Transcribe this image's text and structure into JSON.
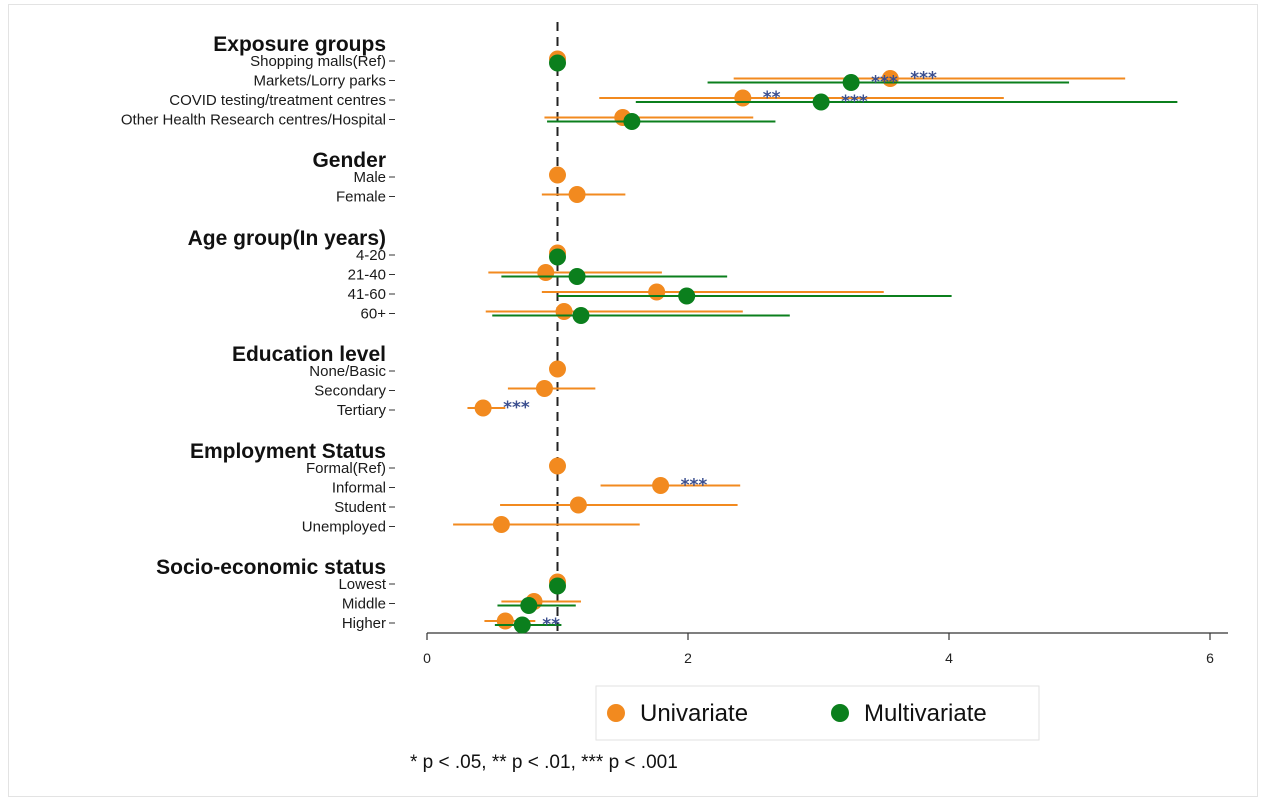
{
  "chart_data": {
    "type": "scatter",
    "subtype": "forest-plot",
    "x_ticks": [
      0,
      2,
      4,
      6
    ],
    "xlim": [
      0,
      6.1
    ],
    "reference_line": 1,
    "colors": {
      "Univariate": "#f28a1f",
      "Multivariate": "#0b7f1d",
      "star": "#3b4f8f"
    },
    "groups": [
      {
        "header": "Exposure groups",
        "rows": [
          {
            "label": "Shopping malls(Ref)",
            "uni": {
              "est": 1
            },
            "multi": {
              "est": 1
            }
          },
          {
            "label": "Markets/Lorry parks",
            "uni": {
              "est": 3.55,
              "lo": 2.35,
              "hi": 5.35,
              "sig": "***"
            },
            "multi": {
              "est": 3.25,
              "lo": 2.15,
              "hi": 4.92,
              "sig": "***"
            }
          },
          {
            "label": "COVID testing/treatment centres",
            "uni": {
              "est": 2.42,
              "lo": 1.32,
              "hi": 4.42,
              "sig": "**"
            },
            "multi": {
              "est": 3.02,
              "lo": 1.6,
              "hi": 5.75,
              "sig": "***"
            }
          },
          {
            "label": "Other Health Research centres/Hospital",
            "uni": {
              "est": 1.5,
              "lo": 0.9,
              "hi": 2.5
            },
            "multi": {
              "est": 1.57,
              "lo": 0.92,
              "hi": 2.67
            }
          }
        ]
      },
      {
        "header": "Gender",
        "rows": [
          {
            "label": "Male",
            "uni": {
              "est": 1
            }
          },
          {
            "label": "Female",
            "uni": {
              "est": 1.15,
              "lo": 0.88,
              "hi": 1.52
            }
          }
        ]
      },
      {
        "header": "Age group(In years)",
        "rows": [
          {
            "label": "4-20",
            "uni": {
              "est": 1
            },
            "multi": {
              "est": 1
            }
          },
          {
            "label": "21-40",
            "uni": {
              "est": 0.91,
              "lo": 0.47,
              "hi": 1.8
            },
            "multi": {
              "est": 1.15,
              "lo": 0.57,
              "hi": 2.3
            }
          },
          {
            "label": "41-60",
            "uni": {
              "est": 1.76,
              "lo": 0.88,
              "hi": 3.5
            },
            "multi": {
              "est": 1.99,
              "lo": 1.0,
              "hi": 4.02
            }
          },
          {
            "label": "60+",
            "uni": {
              "est": 1.05,
              "lo": 0.45,
              "hi": 2.42
            },
            "multi": {
              "est": 1.18,
              "lo": 0.5,
              "hi": 2.78
            }
          }
        ]
      },
      {
        "header": "Education level",
        "rows": [
          {
            "label": "None/Basic",
            "uni": {
              "est": 1
            }
          },
          {
            "label": "Secondary",
            "uni": {
              "est": 0.9,
              "lo": 0.62,
              "hi": 1.29
            }
          },
          {
            "label": "Tertiary",
            "uni": {
              "est": 0.43,
              "lo": 0.31,
              "hi": 0.6,
              "sig": "***"
            }
          }
        ]
      },
      {
        "header": "Employment Status",
        "rows": [
          {
            "label": "Formal(Ref)",
            "uni": {
              "est": 1
            }
          },
          {
            "label": "Informal",
            "uni": {
              "est": 1.79,
              "lo": 1.33,
              "hi": 2.4,
              "sig": "***"
            }
          },
          {
            "label": "Student",
            "uni": {
              "est": 1.16,
              "lo": 0.56,
              "hi": 2.38
            }
          },
          {
            "label": "Unemployed",
            "uni": {
              "est": 0.57,
              "lo": 0.2,
              "hi": 1.63
            }
          }
        ]
      },
      {
        "header": "Socio-economic status",
        "rows": [
          {
            "label": "Lowest",
            "uni": {
              "est": 1
            },
            "multi": {
              "est": 1
            }
          },
          {
            "label": "Middle",
            "uni": {
              "est": 0.82,
              "lo": 0.57,
              "hi": 1.18
            },
            "multi": {
              "est": 0.78,
              "lo": 0.54,
              "hi": 1.14
            }
          },
          {
            "label": "Higher",
            "uni": {
              "est": 0.6,
              "lo": 0.44,
              "hi": 0.83
            },
            "multi": {
              "est": 0.73,
              "lo": 0.52,
              "hi": 1.03,
              "sig": "**"
            }
          }
        ]
      }
    ]
  },
  "legend": {
    "items": [
      "Univariate",
      "Multivariate"
    ],
    "position": "bottom"
  },
  "footnote": "* p < .05, ** p < .01, *** p < .001"
}
